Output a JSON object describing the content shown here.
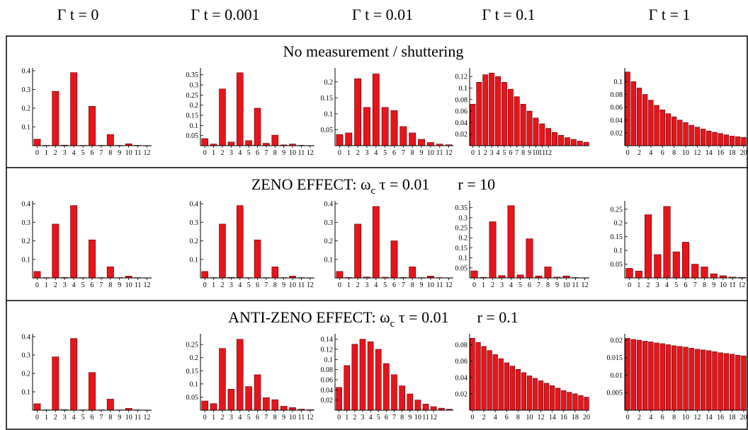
{
  "columns": [
    {
      "prefix": "Γ t = ",
      "value": "0"
    },
    {
      "prefix": "Γ t = ",
      "value": "0.001"
    },
    {
      "prefix": "Γ t = ",
      "value": "0.01"
    },
    {
      "prefix": "Γ t = ",
      "value": "0.1"
    },
    {
      "prefix": "Γ t = ",
      "value": "1"
    }
  ],
  "rows": [
    {
      "title_parts": [
        "No measurement / shuttering"
      ]
    },
    {
      "title_parts": [
        "ZENO EFFECT:  ω",
        "c",
        " τ = 0.01",
        "r = 10"
      ]
    },
    {
      "title_parts": [
        "ANTI-ZENO EFFECT:  ω",
        "c",
        " τ = 0.01",
        "r = 0.1"
      ]
    }
  ],
  "colors": {
    "bar": "#e8141b",
    "bar_stroke": "#5a0000",
    "frame": "#000000"
  },
  "chart_data": [
    {
      "id": "r0c0",
      "type": "bar",
      "x": [
        0,
        1,
        2,
        3,
        4,
        5,
        6,
        7,
        8,
        9,
        10,
        11,
        12
      ],
      "values": [
        0.035,
        0.002,
        0.29,
        0.003,
        0.39,
        0.002,
        0.21,
        0.002,
        0.06,
        0.002,
        0.01,
        0.002,
        0.001
      ],
      "x_tick_labels": [
        "0",
        "1",
        "2",
        "3",
        "4",
        "5",
        "6",
        "7",
        "8",
        "9",
        "10",
        "11",
        "12"
      ],
      "ylim": [
        0,
        0.4
      ],
      "yticks": [
        0.1,
        0.2,
        0.3,
        0.4
      ],
      "ytick_labels": [
        "0.1",
        "0.2",
        "0.3",
        "0.4"
      ]
    },
    {
      "id": "r0c1",
      "type": "bar",
      "x": [
        0,
        1,
        2,
        3,
        4,
        5,
        6,
        7,
        8,
        9,
        10,
        11,
        12
      ],
      "values": [
        0.035,
        0.008,
        0.28,
        0.018,
        0.36,
        0.025,
        0.185,
        0.012,
        0.052,
        0.004,
        0.008,
        0.002,
        0.001
      ],
      "x_tick_labels": [
        "0",
        "1",
        "2",
        "3",
        "4",
        "5",
        "6",
        "7",
        "8",
        "9",
        "10",
        "11",
        "12"
      ],
      "ylim": [
        0,
        0.37
      ],
      "yticks": [
        0.05,
        0.1,
        0.15,
        0.2,
        0.25,
        0.3,
        0.35
      ],
      "ytick_labels": [
        "0.05",
        "0.1",
        "0.15",
        "0.2",
        "0.25",
        "0.3",
        "0.35"
      ]
    },
    {
      "id": "r0c2",
      "type": "bar",
      "x": [
        0,
        1,
        2,
        3,
        4,
        5,
        6,
        7,
        8,
        9,
        10,
        11,
        12
      ],
      "values": [
        0.035,
        0.04,
        0.21,
        0.12,
        0.225,
        0.12,
        0.11,
        0.06,
        0.04,
        0.02,
        0.01,
        0.005,
        0.003
      ],
      "x_tick_labels": [
        "0",
        "1",
        "2",
        "3",
        "4",
        "5",
        "6",
        "7",
        "8",
        "9",
        "10",
        "11",
        "12"
      ],
      "ylim": [
        0,
        0.235
      ],
      "yticks": [
        0.05,
        0.1,
        0.15,
        0.2
      ],
      "ytick_labels": [
        "0.05",
        "0.1",
        "0.15",
        "0.2"
      ]
    },
    {
      "id": "r0c3",
      "type": "bar",
      "x": [
        0,
        1,
        2,
        3,
        4,
        5,
        6,
        7,
        8,
        9,
        10,
        11,
        12,
        13,
        14,
        15,
        16,
        17,
        18
      ],
      "values": [
        0.072,
        0.11,
        0.123,
        0.126,
        0.12,
        0.11,
        0.098,
        0.085,
        0.072,
        0.06,
        0.048,
        0.038,
        0.03,
        0.023,
        0.018,
        0.014,
        0.011,
        0.008,
        0.006
      ],
      "x_tick_labels": [
        "0",
        "1",
        "2",
        "3",
        "4",
        "5",
        "6",
        "7",
        "8",
        "9",
        "10",
        "11",
        "12"
      ],
      "ylim": [
        0,
        0.13
      ],
      "yticks": [
        0.02,
        0.04,
        0.06,
        0.08,
        0.1,
        0.12
      ],
      "ytick_labels": [
        "0.02",
        "0.04",
        "0.06",
        "0.08",
        "0.1",
        "0.12"
      ]
    },
    {
      "id": "r0c4",
      "type": "bar",
      "x": [
        0,
        1,
        2,
        3,
        4,
        5,
        6,
        7,
        8,
        9,
        10,
        11,
        12,
        13,
        14,
        15,
        16,
        17,
        18,
        19,
        20
      ],
      "values": [
        0.115,
        0.1,
        0.09,
        0.08,
        0.071,
        0.063,
        0.056,
        0.05,
        0.045,
        0.04,
        0.036,
        0.032,
        0.029,
        0.026,
        0.023,
        0.021,
        0.019,
        0.017,
        0.015,
        0.014,
        0.013
      ],
      "x_tick_labels": [
        "0",
        "2",
        "4",
        "6",
        "8",
        "10",
        "12",
        "14",
        "16",
        "18",
        "20"
      ],
      "ylim": [
        0,
        0.117
      ],
      "yticks": [
        0.02,
        0.04,
        0.06,
        0.08,
        0.1
      ],
      "ytick_labels": [
        "0.02",
        "0.04",
        "0.06",
        "0.08",
        "0.1"
      ]
    },
    {
      "id": "r1c0",
      "type": "bar",
      "x": [
        0,
        1,
        2,
        3,
        4,
        5,
        6,
        7,
        8,
        9,
        10,
        11,
        12
      ],
      "values": [
        0.035,
        0.002,
        0.29,
        0.003,
        0.39,
        0.002,
        0.205,
        0.002,
        0.06,
        0.002,
        0.01,
        0.002,
        0.001
      ],
      "x_tick_labels": [
        "0",
        "1",
        "2",
        "3",
        "4",
        "5",
        "6",
        "7",
        "8",
        "9",
        "10",
        "11",
        "12"
      ],
      "ylim": [
        0,
        0.4
      ],
      "yticks": [
        0.1,
        0.2,
        0.3,
        0.4
      ],
      "ytick_labels": [
        "0.1",
        "0.2",
        "0.3",
        "0.4"
      ]
    },
    {
      "id": "r1c1",
      "type": "bar",
      "x": [
        0,
        1,
        2,
        3,
        4,
        5,
        6,
        7,
        8,
        9,
        10,
        11,
        12
      ],
      "values": [
        0.035,
        0.002,
        0.29,
        0.003,
        0.39,
        0.002,
        0.205,
        0.002,
        0.06,
        0.002,
        0.01,
        0.002,
        0.001
      ],
      "x_tick_labels": [
        "0",
        "1",
        "2",
        "3",
        "4",
        "5",
        "6",
        "7",
        "8",
        "9",
        "10",
        "11",
        "12"
      ],
      "ylim": [
        0,
        0.4
      ],
      "yticks": [
        0.1,
        0.2,
        0.3,
        0.4
      ],
      "ytick_labels": [
        "0.1",
        "0.2",
        "0.3",
        "0.4"
      ]
    },
    {
      "id": "r1c2",
      "type": "bar",
      "x": [
        0,
        1,
        2,
        3,
        4,
        5,
        6,
        7,
        8,
        9,
        10,
        11,
        12
      ],
      "values": [
        0.035,
        0.003,
        0.29,
        0.005,
        0.385,
        0.004,
        0.2,
        0.003,
        0.06,
        0.002,
        0.01,
        0.002,
        0.001
      ],
      "x_tick_labels": [
        "0",
        "1",
        "2",
        "3",
        "4",
        "5",
        "6",
        "7",
        "8",
        "9",
        "10",
        "11",
        "12"
      ],
      "ylim": [
        0,
        0.4
      ],
      "yticks": [
        0.1,
        0.2,
        0.3,
        0.4
      ],
      "ytick_labels": [
        "0.1",
        "0.2",
        "0.3",
        "0.4"
      ]
    },
    {
      "id": "r1c3",
      "type": "bar",
      "x": [
        0,
        1,
        2,
        3,
        4,
        5,
        6,
        7,
        8,
        9,
        10,
        11,
        12
      ],
      "values": [
        0.035,
        0.003,
        0.28,
        0.012,
        0.36,
        0.015,
        0.195,
        0.01,
        0.055,
        0.004,
        0.01,
        0.002,
        0.001
      ],
      "x_tick_labels": [
        "0",
        "1",
        "2",
        "3",
        "4",
        "5",
        "6",
        "7",
        "8",
        "9",
        "10",
        "11",
        "12"
      ],
      "ylim": [
        0,
        0.37
      ],
      "yticks": [
        0.05,
        0.1,
        0.15,
        0.2,
        0.25,
        0.3,
        0.35
      ],
      "ytick_labels": [
        "0.05",
        "0.1",
        "0.15",
        "0.2",
        "0.25",
        "0.3",
        "0.35"
      ]
    },
    {
      "id": "r1c4",
      "type": "bar",
      "x": [
        0,
        1,
        2,
        3,
        4,
        5,
        6,
        7,
        8,
        9,
        10,
        11,
        12
      ],
      "values": [
        0.035,
        0.025,
        0.23,
        0.085,
        0.26,
        0.095,
        0.13,
        0.05,
        0.04,
        0.015,
        0.008,
        0.003,
        0.002
      ],
      "x_tick_labels": [
        "0",
        "1",
        "2",
        "3",
        "4",
        "5",
        "6",
        "7",
        "8",
        "9",
        "10",
        "11",
        "12"
      ],
      "ylim": [
        0,
        0.27
      ],
      "yticks": [
        0.05,
        0.1,
        0.15,
        0.2,
        0.25
      ],
      "ytick_labels": [
        "0.05",
        "0.1",
        "0.15",
        "0.2",
        "0.25"
      ]
    },
    {
      "id": "r2c0",
      "type": "bar",
      "x": [
        0,
        1,
        2,
        3,
        4,
        5,
        6,
        7,
        8,
        9,
        10,
        11,
        12
      ],
      "values": [
        0.035,
        0.002,
        0.29,
        0.003,
        0.39,
        0.002,
        0.205,
        0.002,
        0.06,
        0.002,
        0.01,
        0.002,
        0.001
      ],
      "x_tick_labels": [
        "0",
        "1",
        "2",
        "3",
        "4",
        "5",
        "6",
        "7",
        "8",
        "9",
        "10",
        "11",
        "12"
      ],
      "ylim": [
        0,
        0.4
      ],
      "yticks": [
        0.1,
        0.2,
        0.3,
        0.4
      ],
      "ytick_labels": [
        "0.1",
        "0.2",
        "0.3",
        "0.4"
      ]
    },
    {
      "id": "r2c1",
      "type": "bar",
      "x": [
        0,
        1,
        2,
        3,
        4,
        5,
        6,
        7,
        8,
        9,
        10,
        11,
        12
      ],
      "values": [
        0.035,
        0.025,
        0.235,
        0.08,
        0.27,
        0.09,
        0.135,
        0.048,
        0.04,
        0.015,
        0.01,
        0.004,
        0.002
      ],
      "x_tick_labels": [
        "0",
        "1",
        "2",
        "3",
        "4",
        "5",
        "6",
        "7",
        "8",
        "9",
        "10",
        "11",
        "12"
      ],
      "ylim": [
        0,
        0.28
      ],
      "yticks": [
        0.05,
        0.1,
        0.15,
        0.2,
        0.25
      ],
      "ytick_labels": [
        "0.05",
        "0.1",
        "0.15",
        "0.2",
        "0.25"
      ]
    },
    {
      "id": "r2c2",
      "type": "bar",
      "x": [
        0,
        1,
        2,
        3,
        4,
        5,
        6,
        7,
        8,
        9,
        10,
        11,
        12,
        13,
        14
      ],
      "values": [
        0.045,
        0.088,
        0.13,
        0.14,
        0.135,
        0.12,
        0.092,
        0.07,
        0.048,
        0.032,
        0.02,
        0.012,
        0.007,
        0.004,
        0.002
      ],
      "x_tick_labels": [
        "0",
        "1",
        "2",
        "3",
        "4",
        "5",
        "6",
        "7",
        "8",
        "9",
        "10",
        "11",
        "12"
      ],
      "ylim": [
        0,
        0.145
      ],
      "yticks": [
        0.02,
        0.04,
        0.06,
        0.08,
        0.1,
        0.12,
        0.14
      ],
      "ytick_labels": [
        "0.02",
        "0.04",
        "0.06",
        "0.08",
        "0.1",
        "0.12",
        "0.14"
      ]
    },
    {
      "id": "r2c3",
      "type": "bar",
      "x": [
        0,
        1,
        2,
        3,
        4,
        5,
        6,
        7,
        8,
        9,
        10,
        11,
        12,
        13,
        14,
        15,
        16,
        17,
        18,
        19,
        20
      ],
      "values": [
        0.088,
        0.083,
        0.078,
        0.073,
        0.068,
        0.063,
        0.058,
        0.054,
        0.05,
        0.046,
        0.042,
        0.039,
        0.036,
        0.033,
        0.03,
        0.027,
        0.024,
        0.022,
        0.02,
        0.018,
        0.016
      ],
      "x_tick_labels": [
        "0",
        "2",
        "4",
        "6",
        "8",
        "10",
        "12",
        "14",
        "16",
        "18",
        "20"
      ],
      "ylim": [
        0,
        0.09
      ],
      "yticks": [
        0.02,
        0.04,
        0.06,
        0.08
      ],
      "ytick_labels": [
        "0.02",
        "0.04",
        "0.06",
        "0.08"
      ]
    },
    {
      "id": "r2c4",
      "type": "bar",
      "x": [
        0,
        1,
        2,
        3,
        4,
        5,
        6,
        7,
        8,
        9,
        10,
        11,
        12,
        13,
        14,
        15,
        16,
        17,
        18,
        19,
        20
      ],
      "values": [
        0.0205,
        0.0202,
        0.02,
        0.0197,
        0.0195,
        0.0192,
        0.019,
        0.0187,
        0.0184,
        0.0182,
        0.018,
        0.0177,
        0.0174,
        0.0172,
        0.017,
        0.0167,
        0.0164,
        0.0162,
        0.016,
        0.0157,
        0.0155
      ],
      "x_tick_labels": [
        "0",
        "2",
        "4",
        "6",
        "8",
        "10",
        "12",
        "14",
        "16",
        "18",
        "20"
      ],
      "ylim": [
        0,
        0.021
      ],
      "yticks": [
        0.005,
        0.01,
        0.015,
        0.02
      ],
      "ytick_labels": [
        "0.005",
        "0.01",
        "0.015",
        "0.02"
      ]
    }
  ]
}
